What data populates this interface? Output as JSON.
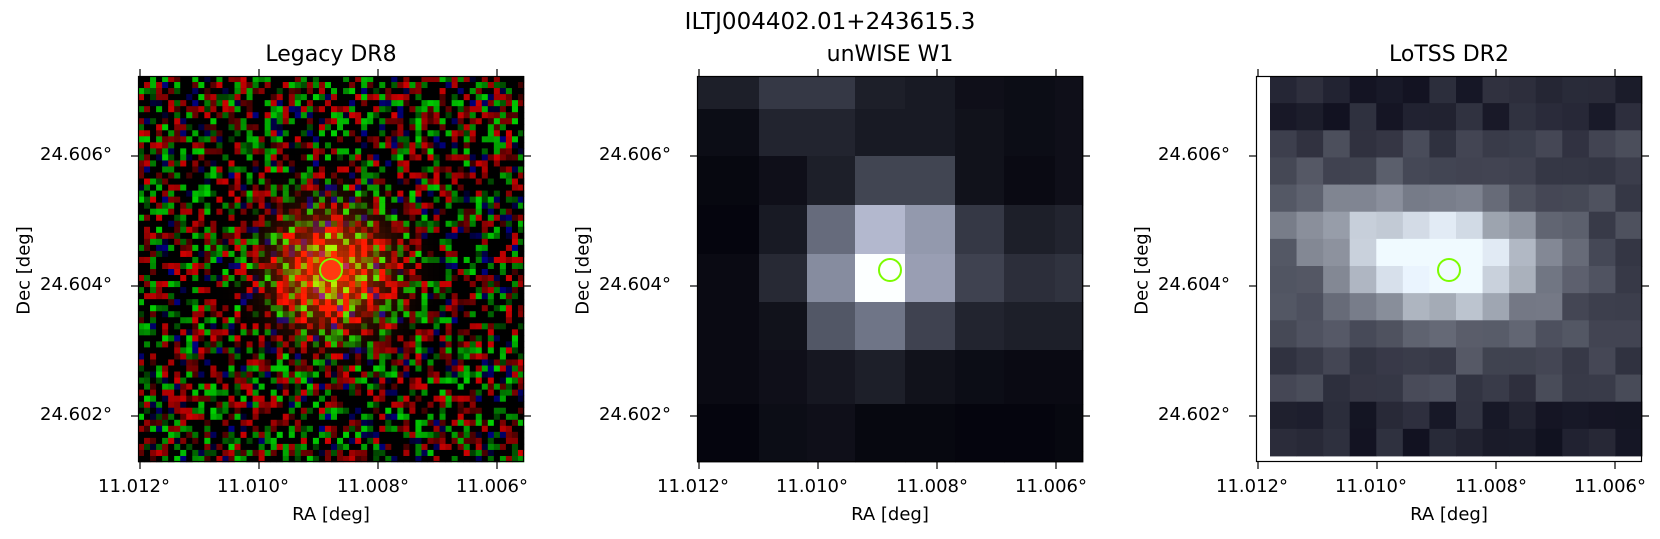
{
  "figure_title": "ILTJ004402.01+243615.3",
  "panels": [
    {
      "title": "Legacy DR8",
      "xlabel": "RA [deg]",
      "ylabel": "Dec [deg]",
      "xticks": [
        "11.012°",
        "11.010°",
        "11.008°",
        "11.006°"
      ],
      "yticks": [
        "24.606°",
        "24.604°",
        "24.602°"
      ]
    },
    {
      "title": "unWISE W1",
      "xlabel": "RA [deg]",
      "ylabel": "Dec [deg]",
      "xticks": [
        "11.012°",
        "11.010°",
        "11.008°",
        "11.006°"
      ],
      "yticks": [
        "24.606°",
        "24.604°",
        "24.602°"
      ]
    },
    {
      "title": "LoTSS DR2",
      "xlabel": "RA [deg]",
      "ylabel": "Dec [deg]",
      "xticks": [
        "11.012°",
        "11.010°",
        "11.008°",
        "11.006°"
      ],
      "yticks": [
        "24.606°",
        "24.604°",
        "24.602°"
      ]
    }
  ],
  "marker_color": "#7cfc00"
}
